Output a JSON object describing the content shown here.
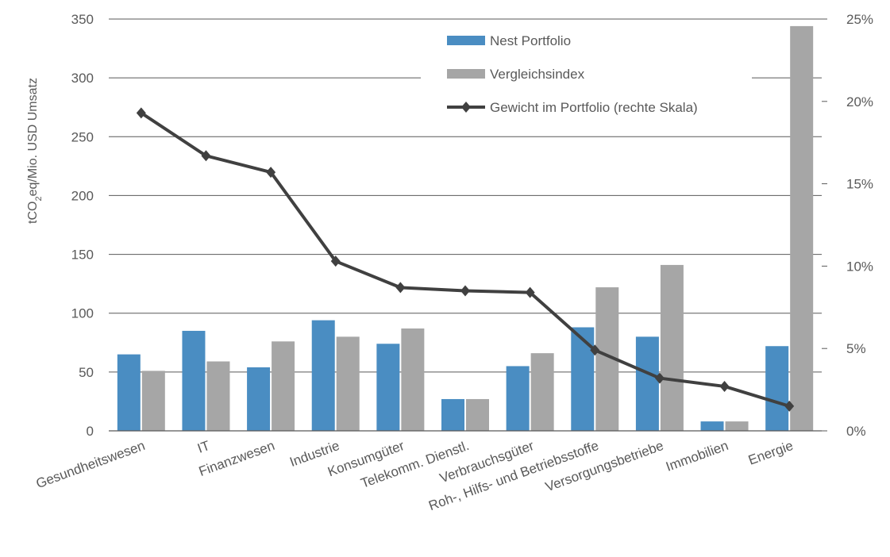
{
  "chart_data": {
    "type": "bar",
    "categories": [
      "Gesundheitswesen",
      "IT",
      "Finanzwesen",
      "Industrie",
      "Konsumgüter",
      "Telekomm. Dienstl.",
      "Verbrauchsgüter",
      "Roh-, Hilfs- und Betriebsstoffe",
      "Versorgungsbetriebe",
      "Immobilien",
      "Energie"
    ],
    "series": [
      {
        "name": "Nest Portfolio",
        "kind": "bar",
        "axis": "left",
        "color": "#4a8dc2",
        "values": [
          65,
          85,
          54,
          94,
          74,
          27,
          55,
          88,
          80,
          8,
          72
        ]
      },
      {
        "name": "Vergleichsindex",
        "kind": "bar",
        "axis": "left",
        "color": "#a6a6a6",
        "values": [
          51,
          59,
          76,
          80,
          87,
          27,
          66,
          122,
          141,
          8,
          344
        ]
      },
      {
        "name": "Gewicht im Portfolio (rechte Skala)",
        "kind": "line",
        "axis": "right",
        "color": "#404040",
        "values": [
          0.193,
          0.167,
          0.157,
          0.103,
          0.087,
          0.085,
          0.084,
          0.049,
          0.032,
          0.027,
          0.015
        ]
      }
    ],
    "ylabel_main": "tCO",
    "ylabel_sub": "2",
    "ylabel_rest": "eq/Mio. USD Umsatz",
    "ylim": [
      0,
      350
    ],
    "yticks": [
      "0",
      "50",
      "100",
      "150",
      "200",
      "250",
      "300",
      "350"
    ],
    "y2lim": [
      0,
      0.25
    ],
    "y2ticks": [
      "0%",
      "5%",
      "10%",
      "15%",
      "20%",
      "25%"
    ],
    "grid": true,
    "legend_position": "top-right"
  }
}
